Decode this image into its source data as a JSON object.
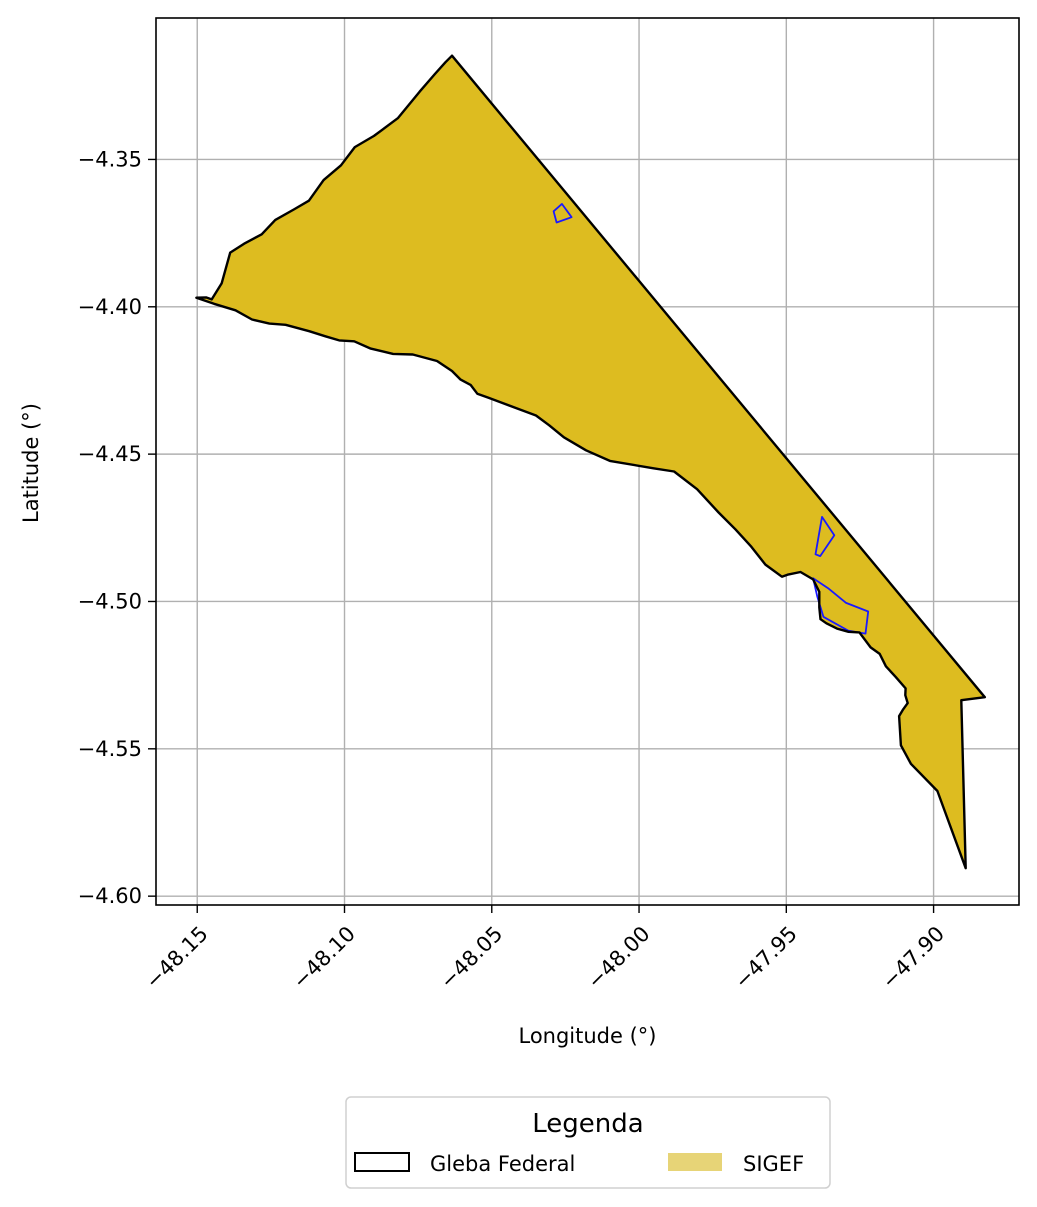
{
  "colors": {
    "sigef_fill": "#ddbc20",
    "sigef_legend": "#e7d477",
    "gleba_edge": "#000000",
    "parcel_edge": "#1a1aff",
    "grid": "#b0b0b0"
  },
  "chart_data": {
    "type": "map",
    "xlabel": "Longitude (°)",
    "ylabel": "Latitude (°)",
    "xlim": [
      -48.164,
      -47.871
    ],
    "ylim": [
      -4.603,
      -4.302
    ],
    "grid": true,
    "x_ticks": [
      {
        "value": -48.15,
        "label": "−48.15"
      },
      {
        "value": -48.1,
        "label": "−48.10"
      },
      {
        "value": -48.05,
        "label": "−48.05"
      },
      {
        "value": -48.0,
        "label": "−48.00"
      },
      {
        "value": -47.95,
        "label": "−47.95"
      },
      {
        "value": -47.9,
        "label": "−47.90"
      }
    ],
    "y_ticks": [
      {
        "value": -4.35,
        "label": "−4.35"
      },
      {
        "value": -4.4,
        "label": "−4.40"
      },
      {
        "value": -4.45,
        "label": "−4.45"
      },
      {
        "value": -4.5,
        "label": "−4.50"
      },
      {
        "value": -4.55,
        "label": "−4.55"
      },
      {
        "value": -4.6,
        "label": "−4.60"
      }
    ],
    "legend": {
      "title": "Legenda",
      "placement": "bottom-center",
      "entries": [
        {
          "label": "Gleba Federal",
          "style": "outline"
        },
        {
          "label": "SIGEF",
          "style": "fill"
        }
      ]
    },
    "gleba_polygon": [
      [
        -48.0635,
        -4.3148
      ],
      [
        -47.8826,
        -4.5325
      ],
      [
        -47.8906,
        -4.5335
      ],
      [
        -47.8891,
        -4.5905
      ],
      [
        -47.8987,
        -4.5643
      ],
      [
        -47.9077,
        -4.5551
      ],
      [
        -47.9111,
        -4.5488
      ],
      [
        -47.9117,
        -4.5389
      ],
      [
        -47.9103,
        -4.5366
      ],
      [
        -47.9088,
        -4.5345
      ],
      [
        -47.9096,
        -4.5318
      ],
      [
        -47.9095,
        -4.5295
      ],
      [
        -47.9128,
        -4.5257
      ],
      [
        -47.9162,
        -4.522
      ],
      [
        -47.9183,
        -4.5178
      ],
      [
        -47.9214,
        -4.5156
      ],
      [
        -47.9252,
        -4.5105
      ],
      [
        -47.9289,
        -4.5103
      ],
      [
        -47.9328,
        -4.5092
      ],
      [
        -47.9364,
        -4.5074
      ],
      [
        -47.9384,
        -4.506
      ],
      [
        -47.9388,
        -4.502
      ],
      [
        -47.9388,
        -4.4967
      ],
      [
        -47.9409,
        -4.4925
      ],
      [
        -47.9452,
        -4.49
      ],
      [
        -47.9496,
        -4.4909
      ],
      [
        -47.9515,
        -4.4916
      ],
      [
        -47.9571,
        -4.4875
      ],
      [
        -47.9619,
        -4.4814
      ],
      [
        -47.9673,
        -4.4755
      ],
      [
        -47.973,
        -4.4698
      ],
      [
        -47.9803,
        -4.4619
      ],
      [
        -47.9881,
        -4.4559
      ],
      [
        -47.9951,
        -4.4548
      ],
      [
        -48.0099,
        -4.4523
      ],
      [
        -48.018,
        -4.4487
      ],
      [
        -48.0255,
        -4.4443
      ],
      [
        -48.0305,
        -4.4402
      ],
      [
        -48.035,
        -4.4369
      ],
      [
        -48.0407,
        -4.4348
      ],
      [
        -48.0467,
        -4.4325
      ],
      [
        -48.0511,
        -4.4309
      ],
      [
        -48.0549,
        -4.4295
      ],
      [
        -48.0572,
        -4.4265
      ],
      [
        -48.0606,
        -4.4247
      ],
      [
        -48.0635,
        -4.4218
      ],
      [
        -48.0686,
        -4.4184
      ],
      [
        -48.0768,
        -4.4162
      ],
      [
        -48.0835,
        -4.416
      ],
      [
        -48.0911,
        -4.4142
      ],
      [
        -48.0967,
        -4.4117
      ],
      [
        -48.1018,
        -4.4114
      ],
      [
        -48.1065,
        -4.41
      ],
      [
        -48.112,
        -4.4083
      ],
      [
        -48.12,
        -4.4061
      ],
      [
        -48.1255,
        -4.4057
      ],
      [
        -48.1314,
        -4.4043
      ],
      [
        -48.137,
        -4.4012
      ],
      [
        -48.1443,
        -4.399
      ],
      [
        -48.1503,
        -4.3969
      ],
      [
        -48.147,
        -4.3968
      ],
      [
        -48.1451,
        -4.3975
      ],
      [
        -48.1417,
        -4.392
      ],
      [
        -48.1388,
        -4.3816
      ],
      [
        -48.1341,
        -4.3786
      ],
      [
        -48.1281,
        -4.3754
      ],
      [
        -48.1235,
        -4.3705
      ],
      [
        -48.1172,
        -4.367
      ],
      [
        -48.1121,
        -4.364
      ],
      [
        -48.1071,
        -4.357
      ],
      [
        -48.1012,
        -4.352
      ],
      [
        -48.0965,
        -4.3458
      ],
      [
        -48.09,
        -4.342
      ],
      [
        -48.0819,
        -4.336
      ],
      [
        -48.0745,
        -4.327
      ],
      [
        -48.0693,
        -4.321
      ],
      [
        -48.0657,
        -4.317
      ]
    ],
    "parcels": [
      [
        [
          -48.029,
          -4.3676
        ],
        [
          -48.0262,
          -4.3651
        ],
        [
          -48.0229,
          -4.3696
        ],
        [
          -48.028,
          -4.3714
        ]
      ],
      [
        [
          -47.9379,
          -4.4713
        ],
        [
          -47.9337,
          -4.4775
        ],
        [
          -47.9385,
          -4.4846
        ],
        [
          -47.9401,
          -4.484
        ]
      ],
      [
        [
          -47.9409,
          -4.4921
        ],
        [
          -47.9358,
          -4.4955
        ],
        [
          -47.9297,
          -4.5005
        ],
        [
          -47.9222,
          -4.5034
        ],
        [
          -47.9231,
          -4.5109
        ],
        [
          -47.929,
          -4.5099
        ],
        [
          -47.9374,
          -4.5052
        ],
        [
          -47.9395,
          -4.4982
        ]
      ]
    ]
  }
}
